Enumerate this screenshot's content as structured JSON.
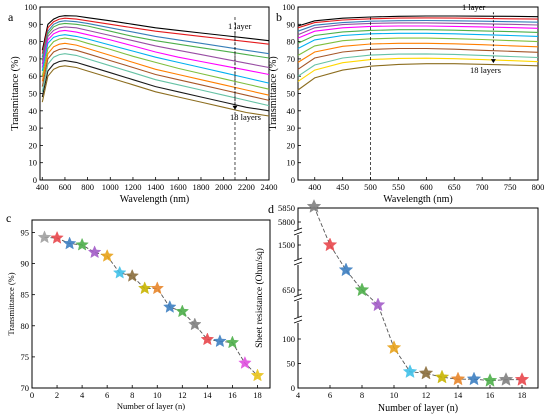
{
  "chart_data": [
    {
      "panel_label": "a",
      "type": "line",
      "xlabel": "Wavelength (nm)",
      "ylabel": "Transmittance (%)",
      "xlim": [
        380,
        2400
      ],
      "ylim": [
        0,
        100
      ],
      "xticks": [
        400,
        600,
        800,
        1000,
        1200,
        1400,
        1600,
        1800,
        2000,
        2200,
        2400
      ],
      "yticks": [
        0,
        10,
        20,
        30,
        40,
        50,
        60,
        70,
        80,
        90,
        100
      ],
      "annotations": [
        "1 layer",
        "18 layers"
      ],
      "grid": false,
      "series": [
        {
          "color": "#000000",
          "x": [
            400,
            450,
            500,
            550,
            600,
            700,
            800,
            1000,
            1200,
            1400,
            1600,
            1800,
            2000,
            2200,
            2400
          ],
          "values": [
            75,
            90,
            93,
            94.5,
            95,
            94.8,
            93.8,
            92,
            90,
            88,
            86.5,
            85,
            83.5,
            82,
            80.5
          ]
        },
        {
          "color": "#e41a1c",
          "x": [
            400,
            450,
            500,
            550,
            600,
            700,
            800,
            1000,
            1200,
            1400,
            1600,
            1800,
            2000,
            2200,
            2400
          ],
          "values": [
            73,
            88,
            91.5,
            93,
            93.5,
            93,
            92,
            90,
            88,
            86,
            84.5,
            83,
            81.5,
            80,
            78.5
          ]
        },
        {
          "color": "#377eb8",
          "x": [
            400,
            450,
            500,
            550,
            600,
            700,
            800,
            1000,
            1200,
            1400,
            1600,
            1800,
            2000,
            2200,
            2400
          ],
          "values": [
            71,
            86,
            90,
            91.5,
            92,
            91.5,
            90.5,
            88,
            85.5,
            83,
            81,
            79,
            77,
            75,
            73
          ]
        },
        {
          "color": "#4daf4a",
          "x": [
            400,
            450,
            500,
            550,
            600,
            700,
            800,
            1000,
            1200,
            1400,
            1600,
            1800,
            2000,
            2200,
            2400
          ],
          "values": [
            69,
            84.5,
            88.5,
            90,
            90.5,
            90,
            89,
            86,
            83,
            80.5,
            78.5,
            76.5,
            74.5,
            72.5,
            70.5
          ]
        },
        {
          "color": "#984ea3",
          "x": [
            400,
            450,
            500,
            550,
            600,
            700,
            800,
            1000,
            1200,
            1400,
            1600,
            1800,
            2000,
            2200,
            2400
          ],
          "values": [
            67,
            83,
            86.5,
            88,
            88.5,
            88,
            86.5,
            83.5,
            80.5,
            77.5,
            75,
            72.5,
            70,
            67.5,
            65
          ]
        },
        {
          "color": "#ff00ff",
          "x": [
            400,
            450,
            500,
            550,
            600,
            700,
            800,
            1000,
            1200,
            1400,
            1600,
            1800,
            2000,
            2200,
            2400
          ],
          "values": [
            65,
            81,
            84.5,
            86,
            86.5,
            85.5,
            84,
            81,
            77.5,
            74,
            71,
            68.5,
            66,
            63.5,
            61
          ]
        },
        {
          "color": "#00b0f0",
          "x": [
            400,
            450,
            500,
            550,
            600,
            700,
            800,
            1000,
            1200,
            1400,
            1600,
            1800,
            2000,
            2200,
            2400
          ],
          "values": [
            63,
            79,
            82.5,
            83.5,
            84,
            83,
            81.5,
            78,
            74.5,
            71,
            68,
            65,
            62,
            59,
            56
          ]
        },
        {
          "color": "#7fbf3f",
          "x": [
            400,
            450,
            500,
            550,
            600,
            700,
            800,
            1000,
            1200,
            1400,
            1600,
            1800,
            2000,
            2200,
            2400
          ],
          "values": [
            60,
            76,
            80,
            81.5,
            82,
            81,
            79,
            75.5,
            71.5,
            68,
            64.5,
            61.5,
            58.5,
            55.5,
            52.5
          ]
        },
        {
          "color": "#ff7f00",
          "x": [
            400,
            450,
            500,
            550,
            600,
            700,
            800,
            1000,
            1200,
            1400,
            1600,
            1800,
            2000,
            2200,
            2400
          ],
          "values": [
            57,
            73,
            77,
            78.5,
            79,
            78,
            76,
            72,
            68,
            64,
            61,
            58,
            55,
            52,
            49
          ]
        },
        {
          "color": "#a65628",
          "x": [
            400,
            450,
            500,
            550,
            600,
            700,
            800,
            1000,
            1200,
            1400,
            1600,
            1800,
            2000,
            2200,
            2400
          ],
          "values": [
            54,
            70,
            74,
            75.5,
            76,
            75,
            73,
            69,
            65,
            61,
            58,
            55,
            52,
            49,
            46
          ]
        },
        {
          "color": "#66c2a5",
          "x": [
            400,
            450,
            500,
            550,
            600,
            700,
            800,
            1000,
            1200,
            1400,
            1600,
            1800,
            2000,
            2200,
            2400
          ],
          "values": [
            51,
            67,
            71,
            72.5,
            73,
            72,
            70,
            66,
            62,
            58,
            55,
            52,
            49,
            46,
            43
          ]
        },
        {
          "color": "#1a1a1a",
          "x": [
            400,
            450,
            500,
            550,
            600,
            700,
            800,
            1000,
            1200,
            1400,
            1600,
            1800,
            2000,
            2200,
            2400
          ],
          "values": [
            48,
            63,
            67,
            68.5,
            69,
            68,
            66,
            62,
            58,
            54,
            51,
            48,
            45,
            42,
            40
          ]
        },
        {
          "color": "#8c6d1f",
          "x": [
            400,
            450,
            500,
            550,
            600,
            700,
            800,
            1000,
            1200,
            1400,
            1600,
            1800,
            2000,
            2200,
            2400
          ],
          "values": [
            45,
            60,
            64,
            65.5,
            66,
            65,
            63,
            59,
            55,
            51,
            48,
            45,
            42,
            39,
            37
          ]
        }
      ]
    },
    {
      "panel_label": "b",
      "type": "line",
      "xlabel": "Wavelength (nm)",
      "ylabel": "Transmittance (%)",
      "xlim": [
        370,
        800
      ],
      "ylim": [
        0,
        100
      ],
      "xticks": [
        400,
        450,
        500,
        550,
        600,
        650,
        700,
        750,
        800
      ],
      "yticks": [
        0,
        10,
        20,
        30,
        40,
        50,
        60,
        70,
        80,
        90,
        100
      ],
      "annotations": [
        "1 layer",
        "18 layers"
      ],
      "grid": false,
      "series": [
        {
          "color": "#000000",
          "x": [
            370,
            400,
            450,
            500,
            550,
            600,
            650,
            700,
            750,
            800
          ],
          "values": [
            89,
            92,
            93.5,
            94.2,
            94.6,
            94.8,
            94.8,
            94.7,
            94.6,
            94.4
          ]
        },
        {
          "color": "#e41a1c",
          "x": [
            370,
            400,
            450,
            500,
            550,
            600,
            650,
            700,
            750,
            800
          ],
          "values": [
            88,
            91,
            92.5,
            93.2,
            93.6,
            93.7,
            93.6,
            93.4,
            93.2,
            93
          ]
        },
        {
          "color": "#377eb8",
          "x": [
            370,
            400,
            450,
            500,
            550,
            600,
            650,
            700,
            750,
            800
          ],
          "values": [
            86,
            89.5,
            91,
            91.8,
            92.1,
            92.2,
            92,
            91.8,
            91.5,
            91.2
          ]
        },
        {
          "color": "#984ea3",
          "x": [
            370,
            400,
            450,
            500,
            550,
            600,
            650,
            700,
            750,
            800
          ],
          "values": [
            84,
            88,
            89.8,
            90.5,
            90.8,
            90.8,
            90.6,
            90.3,
            90,
            89.6
          ]
        },
        {
          "color": "#ff00ff",
          "x": [
            370,
            400,
            450,
            500,
            550,
            600,
            650,
            700,
            750,
            800
          ],
          "values": [
            82,
            86,
            88,
            88.8,
            89,
            89,
            88.8,
            88.5,
            88.1,
            87.7
          ]
        },
        {
          "color": "#4daf4a",
          "x": [
            370,
            400,
            450,
            500,
            550,
            600,
            650,
            700,
            750,
            800
          ],
          "values": [
            79,
            83.5,
            85.6,
            86.5,
            86.9,
            86.9,
            86.6,
            86.2,
            85.8,
            85.3
          ]
        },
        {
          "color": "#00b0f0",
          "x": [
            370,
            400,
            450,
            500,
            550,
            600,
            650,
            700,
            750,
            800
          ],
          "values": [
            76,
            81,
            83.5,
            84.5,
            84.8,
            84.8,
            84.5,
            84,
            83.5,
            83
          ]
        },
        {
          "color": "#7fbf3f",
          "x": [
            370,
            400,
            450,
            500,
            550,
            600,
            650,
            700,
            750,
            800
          ],
          "values": [
            72,
            77.5,
            80.5,
            81.6,
            82,
            82,
            81.7,
            81.2,
            80.6,
            80
          ]
        },
        {
          "color": "#ff7f00",
          "x": [
            370,
            400,
            450,
            500,
            550,
            600,
            650,
            700,
            750,
            800
          ],
          "values": [
            68,
            74,
            77.3,
            78.6,
            79,
            79,
            78.7,
            78.2,
            77.6,
            77
          ]
        },
        {
          "color": "#a65628",
          "x": [
            370,
            400,
            450,
            500,
            550,
            600,
            650,
            700,
            750,
            800
          ],
          "values": [
            64,
            70.5,
            74,
            75.5,
            76,
            76,
            75.6,
            75,
            74.4,
            73.8
          ]
        },
        {
          "color": "#66c2a5",
          "x": [
            370,
            400,
            450,
            500,
            550,
            600,
            650,
            700,
            750,
            800
          ],
          "values": [
            60,
            66.5,
            70.5,
            72.2,
            72.8,
            72.9,
            72.6,
            72,
            71.4,
            70.8
          ]
        },
        {
          "color": "#ffd700",
          "x": [
            370,
            400,
            450,
            500,
            550,
            600,
            650,
            700,
            750,
            800
          ],
          "values": [
            57,
            63.5,
            67.8,
            69.6,
            70.3,
            70.4,
            70.1,
            69.6,
            69,
            68.4
          ]
        },
        {
          "color": "#8c6d1f",
          "x": [
            370,
            400,
            450,
            500,
            550,
            600,
            650,
            700,
            750,
            800
          ],
          "values": [
            52,
            59,
            63.5,
            65.8,
            66.8,
            67.2,
            67.2,
            66.9,
            66.5,
            66
          ]
        }
      ]
    },
    {
      "panel_label": "c",
      "type": "line",
      "xlabel": "Number of layer (n)",
      "ylabel": "Transmittance (%)",
      "xlim": [
        0,
        19
      ],
      "ylim": [
        70,
        97
      ],
      "xticks": [
        0,
        2,
        4,
        6,
        8,
        10,
        12,
        14,
        16,
        18
      ],
      "yticks": [
        70,
        75,
        80,
        85,
        90,
        95
      ],
      "grid": false,
      "x": [
        1,
        2,
        3,
        4,
        5,
        6,
        7,
        8,
        9,
        10,
        11,
        12,
        13,
        14,
        15,
        16,
        17,
        18
      ],
      "values": [
        94.2,
        94.1,
        93.2,
        93.0,
        91.8,
        91.2,
        88.5,
        88.0,
        86.0,
        86.0,
        83.0,
        82.3,
        80.2,
        77.8,
        77.5,
        77.3,
        74.0,
        72.0
      ],
      "marker_colors": [
        "#a0a0a0",
        "#e8474c",
        "#3d7fc1",
        "#4daf4a",
        "#a35cc8",
        "#e8a21a",
        "#3fc0e8",
        "#8a6d3b",
        "#c8b400",
        "#e8862a",
        "#3d7fc1",
        "#4daf4a",
        "#808080",
        "#e8474c",
        "#3d7fc1",
        "#4daf4a",
        "#e04fe0",
        "#e8c31a"
      ]
    },
    {
      "panel_label": "d",
      "type": "line",
      "xlabel": "Number of layer (n)",
      "ylabel": "Sheet resistance (Ohm/sq)",
      "xlim": [
        4,
        19
      ],
      "axis_breaks": true,
      "yticks": [
        "0",
        "50",
        "100",
        "650",
        "1500",
        "5800",
        "5850"
      ],
      "xticks": [
        4,
        6,
        8,
        10,
        12,
        14,
        16,
        18
      ],
      "grid": false,
      "x": [
        5,
        6,
        7,
        8,
        9,
        10,
        11,
        12,
        13,
        14,
        15,
        16,
        17,
        18
      ],
      "values": [
        5855,
        1490,
        1000,
        600,
        300,
        82,
        33,
        30,
        22,
        18,
        18,
        15,
        17,
        17
      ],
      "marker_colors": [
        "#808080",
        "#e8474c",
        "#3d7fc1",
        "#4daf4a",
        "#a35cc8",
        "#e8a21a",
        "#3fc0e8",
        "#8a6d3b",
        "#c8b400",
        "#e8862a",
        "#3d7fc1",
        "#4daf4a",
        "#808080",
        "#e8474c"
      ]
    }
  ]
}
